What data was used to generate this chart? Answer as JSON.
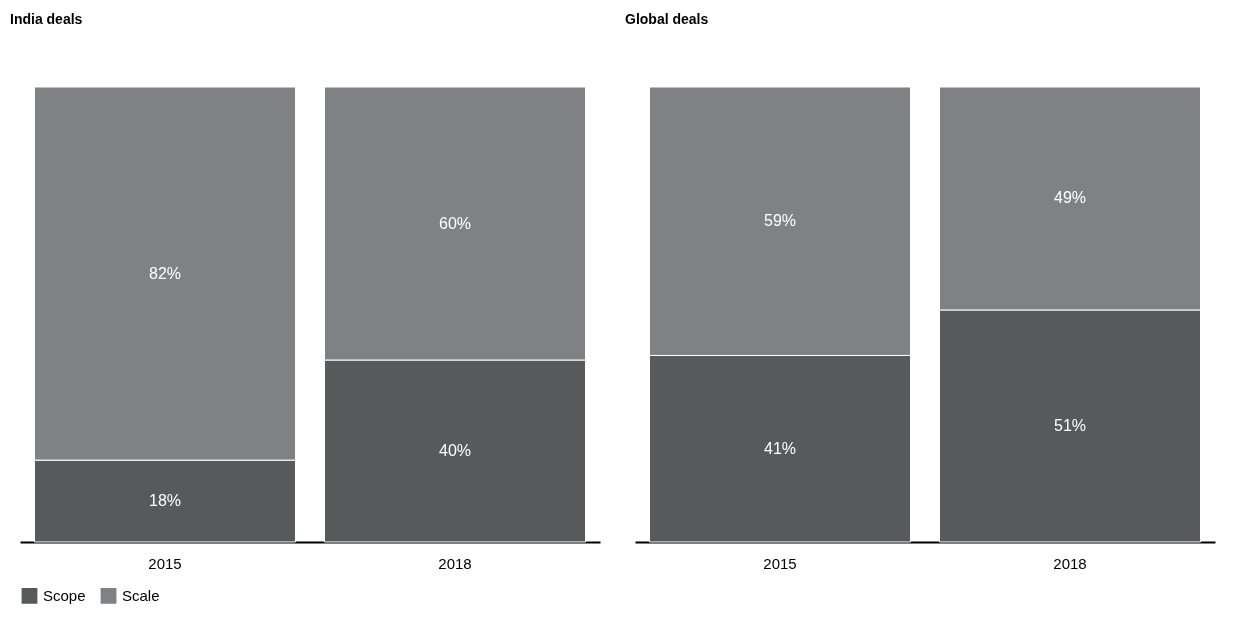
{
  "chart_data": [
    {
      "type": "bar",
      "title": "India deals",
      "categories": [
        "2015",
        "2018"
      ],
      "stacked": true,
      "ylim": [
        0,
        100
      ],
      "tick_labels": "x",
      "legend": "bottom",
      "series": [
        {
          "name": "Scope",
          "color": "#58595b",
          "values": [
            18,
            40
          ],
          "value_labels": [
            "18%",
            "40%"
          ]
        },
        {
          "name": "Scale",
          "color": "#808184",
          "values": [
            82,
            60
          ],
          "value_labels": [
            "82%",
            "60%"
          ]
        }
      ]
    },
    {
      "type": "bar",
      "title": "Global deals",
      "categories": [
        "2015",
        "2018"
      ],
      "stacked": true,
      "ylim": [
        0,
        100
      ],
      "tick_labels": "x",
      "legend": "bottom",
      "series": [
        {
          "name": "Scope",
          "color": "#58595b",
          "values": [
            41,
            51
          ],
          "value_labels": [
            "41%",
            "51%"
          ]
        },
        {
          "name": "Scale",
          "color": "#808184",
          "values": [
            59,
            49
          ],
          "value_labels": [
            "59%",
            "49%"
          ]
        }
      ]
    }
  ]
}
